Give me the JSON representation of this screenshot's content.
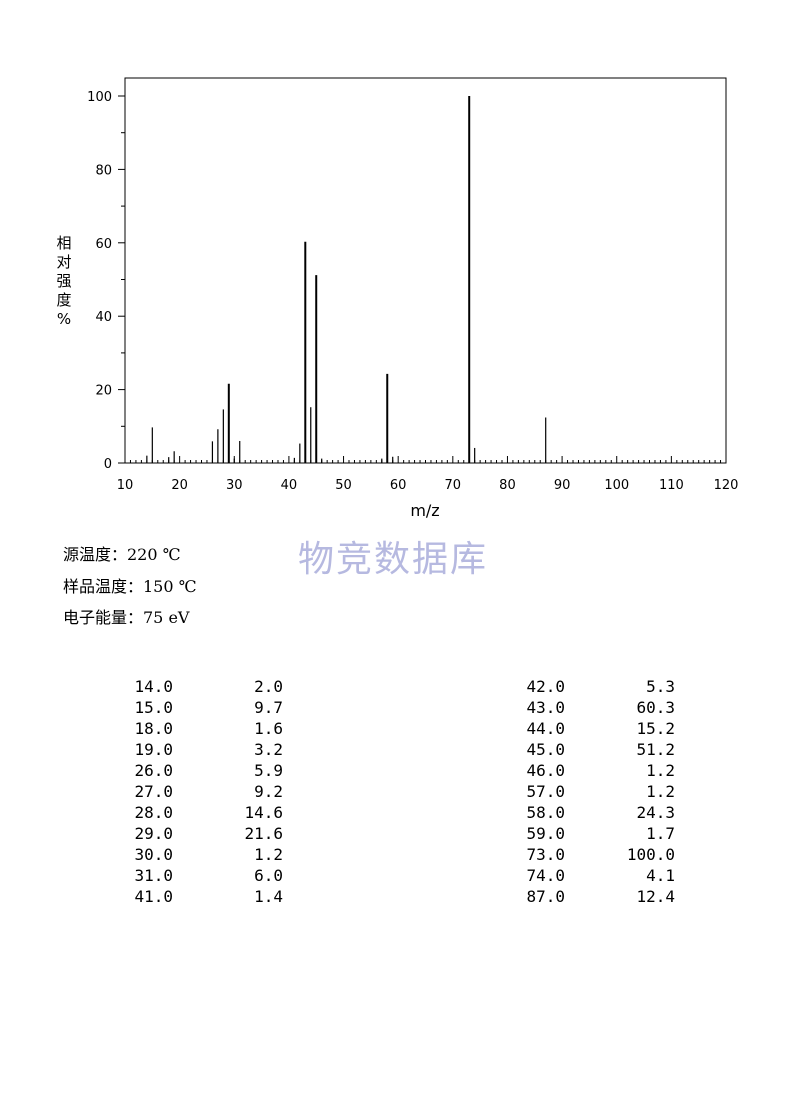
{
  "chart_data": {
    "type": "bar",
    "xlabel": "m/z",
    "ylabel": "相对强度%",
    "ylabel_chars": [
      "相",
      "对",
      "强",
      "度",
      "%"
    ],
    "xlim": [
      10,
      120
    ],
    "ylim": [
      0,
      105
    ],
    "x_ticks": [
      10,
      20,
      30,
      40,
      50,
      60,
      70,
      80,
      90,
      100,
      110,
      120
    ],
    "y_ticks": [
      0,
      20,
      40,
      60,
      80,
      100
    ],
    "grid": false,
    "peaks": [
      {
        "mz": 14,
        "intensity": 2.0
      },
      {
        "mz": 15,
        "intensity": 9.7
      },
      {
        "mz": 18,
        "intensity": 1.6
      },
      {
        "mz": 19,
        "intensity": 3.2
      },
      {
        "mz": 26,
        "intensity": 5.9
      },
      {
        "mz": 27,
        "intensity": 9.2
      },
      {
        "mz": 28,
        "intensity": 14.6
      },
      {
        "mz": 29,
        "intensity": 21.6
      },
      {
        "mz": 30,
        "intensity": 1.2
      },
      {
        "mz": 31,
        "intensity": 6.0
      },
      {
        "mz": 41,
        "intensity": 1.4
      },
      {
        "mz": 42,
        "intensity": 5.3
      },
      {
        "mz": 43,
        "intensity": 60.3
      },
      {
        "mz": 44,
        "intensity": 15.2
      },
      {
        "mz": 45,
        "intensity": 51.2
      },
      {
        "mz": 46,
        "intensity": 1.2
      },
      {
        "mz": 57,
        "intensity": 1.2
      },
      {
        "mz": 58,
        "intensity": 24.3
      },
      {
        "mz": 59,
        "intensity": 1.7
      },
      {
        "mz": 73,
        "intensity": 100.0
      },
      {
        "mz": 74,
        "intensity": 4.1
      },
      {
        "mz": 87,
        "intensity": 12.4
      }
    ]
  },
  "watermark": "物竞数据库",
  "conditions": {
    "source_temp": "源温度：220 ℃",
    "sample_temp": "样品温度：150 ℃",
    "electron_energy": "电子能量：75 eV"
  },
  "peak_table": {
    "left": [
      [
        "14.0",
        "2.0"
      ],
      [
        "15.0",
        "9.7"
      ],
      [
        "18.0",
        "1.6"
      ],
      [
        "19.0",
        "3.2"
      ],
      [
        "26.0",
        "5.9"
      ],
      [
        "27.0",
        "9.2"
      ],
      [
        "28.0",
        "14.6"
      ],
      [
        "29.0",
        "21.6"
      ],
      [
        "30.0",
        "1.2"
      ],
      [
        "31.0",
        "6.0"
      ],
      [
        "41.0",
        "1.4"
      ]
    ],
    "right": [
      [
        "42.0",
        "5.3"
      ],
      [
        "43.0",
        "60.3"
      ],
      [
        "44.0",
        "15.2"
      ],
      [
        "45.0",
        "51.2"
      ],
      [
        "46.0",
        "1.2"
      ],
      [
        "57.0",
        "1.2"
      ],
      [
        "58.0",
        "24.3"
      ],
      [
        "59.0",
        "1.7"
      ],
      [
        "73.0",
        "100.0"
      ],
      [
        "74.0",
        "4.1"
      ],
      [
        "87.0",
        "12.4"
      ]
    ]
  }
}
